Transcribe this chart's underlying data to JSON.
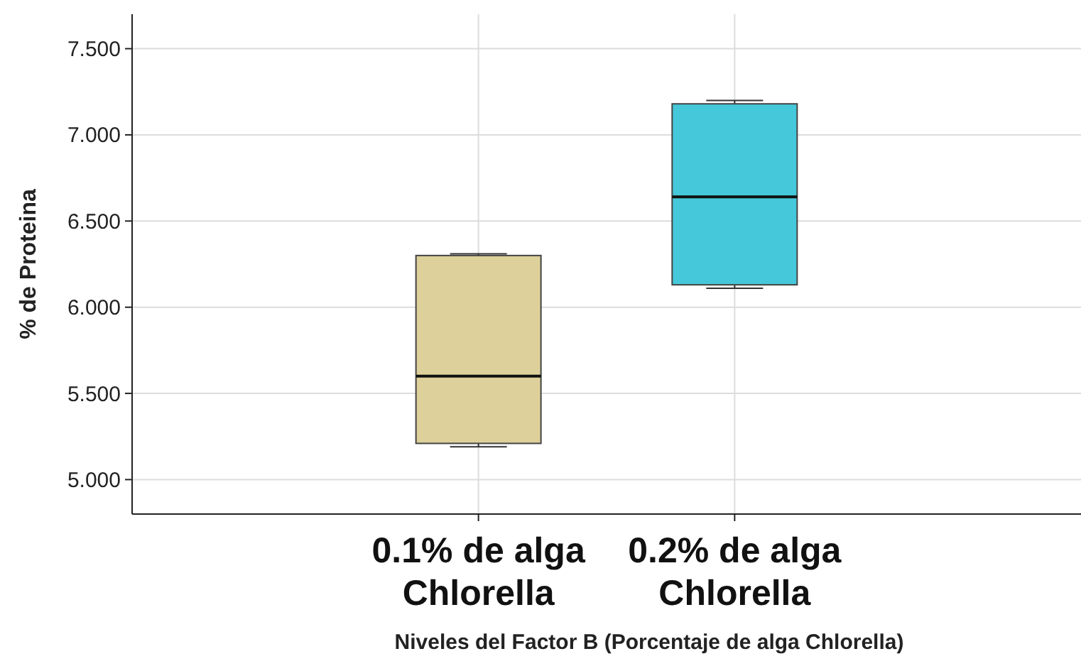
{
  "chart_data": {
    "type": "box",
    "xlabel": "Niveles del Factor B (Porcentaje de alga Chlorella)",
    "ylabel": "% de Proteina",
    "categories": [
      "0.1% de alga Chlorella",
      "0.2% de alga Chlorella"
    ],
    "colors": [
      "#ddd09b",
      "#45c8d9"
    ],
    "boxes": [
      {
        "low": 5.19,
        "q1": 5.21,
        "median": 5.6,
        "q3": 6.3,
        "high": 6.31
      },
      {
        "low": 6.11,
        "q1": 6.13,
        "median": 6.64,
        "q3": 7.18,
        "high": 7.2
      }
    ],
    "ylim": [
      4.8,
      7.7
    ],
    "yticks": [
      {
        "value": 5,
        "label": "5.000"
      },
      {
        "value": 5.5,
        "label": "5.500"
      },
      {
        "value": 6,
        "label": "6.000"
      },
      {
        "value": 6.5,
        "label": "6.500"
      },
      {
        "value": 7,
        "label": "7.000"
      },
      {
        "value": 7.5,
        "label": "7.500"
      }
    ],
    "grid": true
  }
}
